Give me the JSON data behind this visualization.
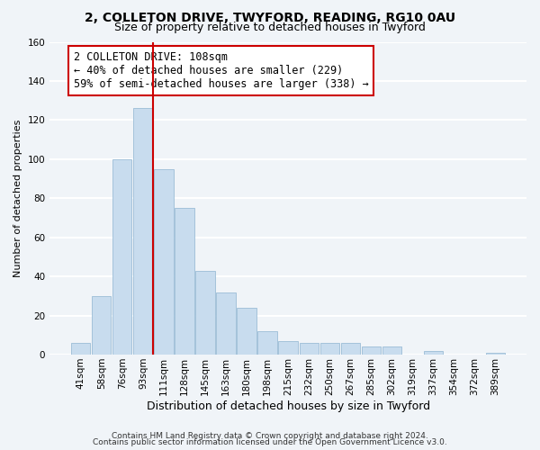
{
  "title_line1": "2, COLLETON DRIVE, TWYFORD, READING, RG10 0AU",
  "title_line2": "Size of property relative to detached houses in Twyford",
  "xlabel": "Distribution of detached houses by size in Twyford",
  "ylabel": "Number of detached properties",
  "bar_color": "#c8dcee",
  "bar_edge_color": "#9bbdd6",
  "bin_labels": [
    "41sqm",
    "58sqm",
    "76sqm",
    "93sqm",
    "111sqm",
    "128sqm",
    "145sqm",
    "163sqm",
    "180sqm",
    "198sqm",
    "215sqm",
    "232sqm",
    "250sqm",
    "267sqm",
    "285sqm",
    "302sqm",
    "319sqm",
    "337sqm",
    "354sqm",
    "372sqm",
    "389sqm"
  ],
  "bar_heights": [
    6,
    30,
    100,
    126,
    95,
    75,
    43,
    32,
    24,
    12,
    7,
    6,
    6,
    6,
    4,
    4,
    0,
    2,
    0,
    0,
    1
  ],
  "vline_x_index": 3.5,
  "vline_color": "#cc0000",
  "annotation_line1": "2 COLLETON DRIVE: 108sqm",
  "annotation_line2": "← 40% of detached houses are smaller (229)",
  "annotation_line3": "59% of semi-detached houses are larger (338) →",
  "annotation_box_color": "#ffffff",
  "annotation_box_edge_color": "#cc0000",
  "ylim": [
    0,
    160
  ],
  "yticks": [
    0,
    20,
    40,
    60,
    80,
    100,
    120,
    140,
    160
  ],
  "footer_line1": "Contains HM Land Registry data © Crown copyright and database right 2024.",
  "footer_line2": "Contains public sector information licensed under the Open Government Licence v3.0.",
  "background_color": "#f0f4f8",
  "grid_color": "#ffffff",
  "title1_fontsize": 10,
  "title2_fontsize": 9,
  "xlabel_fontsize": 9,
  "ylabel_fontsize": 8,
  "tick_fontsize": 7.5,
  "annotation_fontsize": 8.5,
  "footer_fontsize": 6.5
}
